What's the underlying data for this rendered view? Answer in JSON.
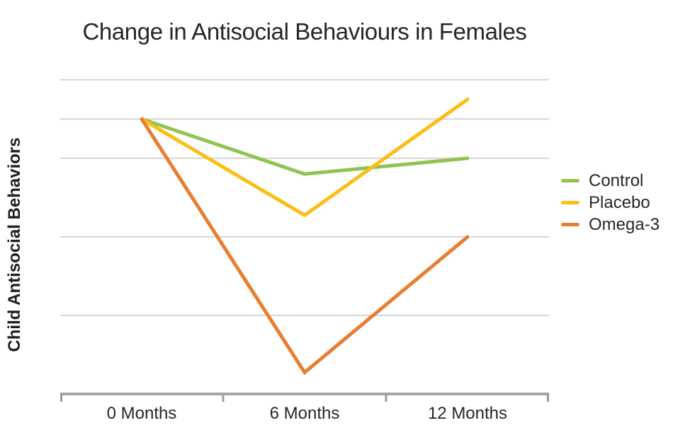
{
  "title": "Change in Antisocial Behaviours in Females",
  "chart_data": {
    "type": "line",
    "title": "Change in Antisocial Behaviours in Females",
    "categories": [
      "0 Months",
      "6 Months",
      "12 Months"
    ],
    "series": [
      {
        "name": "Control",
        "color": "#92C351",
        "values": [
          7.0,
          5.6,
          6.0
        ]
      },
      {
        "name": "Placebo",
        "color": "#FBBF14",
        "values": [
          7.0,
          4.55,
          7.5
        ]
      },
      {
        "name": "Omega-3",
        "color": "#E87E30",
        "values": [
          7.0,
          0.55,
          4.0
        ]
      }
    ],
    "xlabel": "",
    "ylabel": "Child Antisocial Behaviors",
    "ylim": [
      0,
      8.23
    ],
    "gridline_values": [
      2,
      4,
      6,
      7,
      8
    ],
    "y_tick_labels_visible": false,
    "grid": "horizontal",
    "legend_position": "right"
  },
  "colors": {
    "gridline": "#D6D6D6",
    "axis_line": "#A6A6A6",
    "axis_tick": "#9B9B9B",
    "text": "#262626"
  }
}
